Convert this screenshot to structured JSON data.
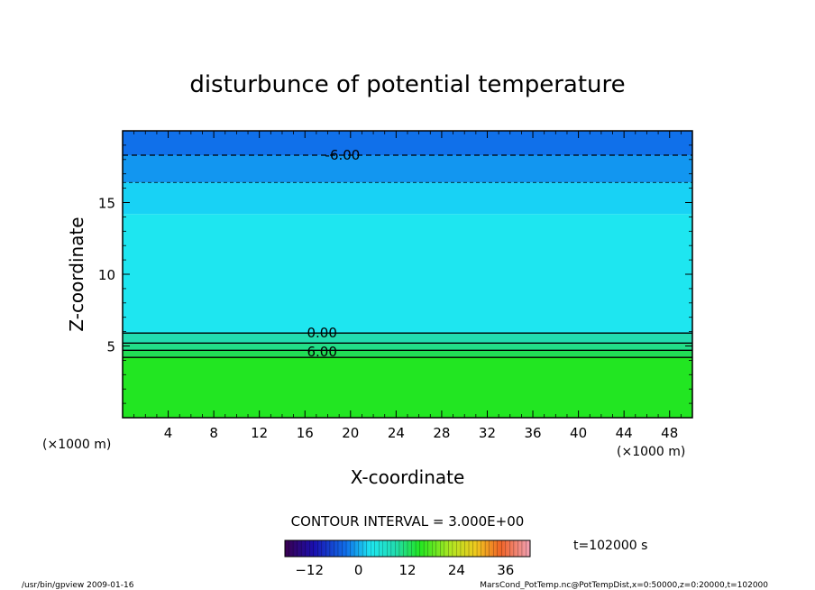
{
  "chart_data": {
    "type": "contour",
    "title": "disturbunce of potential temperature",
    "xlabel": "X-coordinate",
    "ylabel": "Z-coordinate",
    "x_unit": "(×1000 m)",
    "y_unit": "(×1000 m)",
    "xlim": [
      0,
      50
    ],
    "ylim": [
      0,
      20
    ],
    "x_ticks": [
      4,
      8,
      12,
      16,
      20,
      24,
      28,
      32,
      36,
      40,
      44,
      48
    ],
    "y_ticks": [
      5,
      10,
      15
    ],
    "contour_interval_text": "CONTOUR INTERVAL = 3.000E+00",
    "time_label": "t=102000 s",
    "colorbar": {
      "ticks": [
        -12,
        0,
        12,
        24,
        36
      ],
      "range": [
        -18,
        42
      ],
      "colormap": "rainbow"
    },
    "contour_labels": [
      {
        "text": "-6.00",
        "x": 19.3,
        "z": 18.3
      },
      {
        "text": "0.00",
        "x": 17.5,
        "z": 5.9
      },
      {
        "text": "6.00",
        "x": 17.5,
        "z": 4.6
      }
    ],
    "bands": [
      {
        "z0": 0,
        "z1": 4.2,
        "value": 12,
        "color": "#22e622"
      },
      {
        "z0": 4.2,
        "z1": 4.7,
        "value": 9,
        "color": "#22dd55"
      },
      {
        "z0": 4.7,
        "z1": 5.2,
        "value": 6,
        "color": "#22dd88"
      },
      {
        "z0": 5.2,
        "z1": 5.9,
        "value": 3,
        "color": "#22dcb0"
      },
      {
        "z0": 5.9,
        "z1": 14.2,
        "value": -1,
        "color": "#1ee6f0"
      },
      {
        "z0": 14.2,
        "z1": 16.4,
        "value": -3,
        "color": "#18d2f5"
      },
      {
        "z0": 16.4,
        "z1": 18.3,
        "value": -5,
        "color": "#1296f0"
      },
      {
        "z0": 18.3,
        "z1": 20,
        "value": -7,
        "color": "#1070ea"
      }
    ],
    "solid_contours": [
      {
        "value": 0,
        "z": 5.9
      },
      {
        "value": 3,
        "z": 5.2
      },
      {
        "value": 6,
        "z": 4.7
      },
      {
        "value": 9,
        "z": 4.2
      }
    ],
    "dashed_contours": [
      {
        "value": -3,
        "z": 16.4
      },
      {
        "value": -6,
        "z": 18.3
      }
    ]
  },
  "footer": {
    "left": "/usr/bin/gpview   2009-01-16",
    "right": "MarsCond_PotTemp.nc@PotTempDist,x=0:50000,z=0:20000,t=102000"
  },
  "colors": {
    "frame": "#000000",
    "background": "#ffffff"
  }
}
